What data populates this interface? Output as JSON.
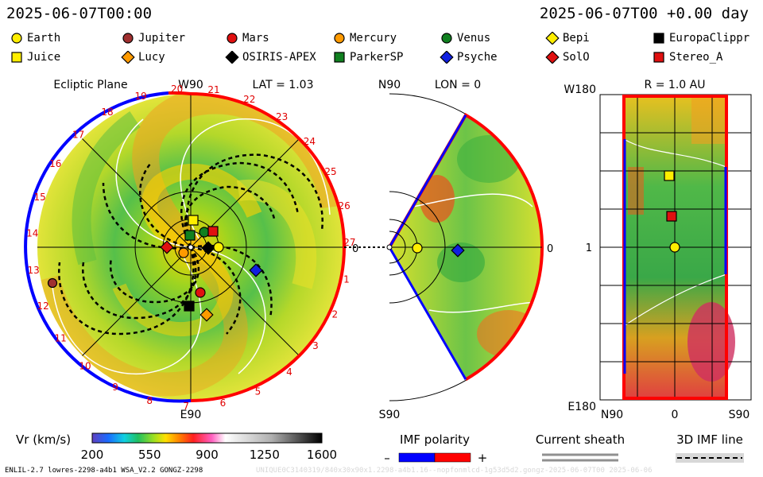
{
  "header": {
    "datetime_left": "2025-06-07T00:00",
    "datetime_right": "2025-06-07T00 +0.00 day"
  },
  "legend": {
    "objects": [
      {
        "name": "Earth",
        "shape": "circle",
        "color": "#ffee00"
      },
      {
        "name": "Jupiter",
        "shape": "circle",
        "color": "#a03030"
      },
      {
        "name": "Mars",
        "shape": "circle",
        "color": "#e01010"
      },
      {
        "name": "Mercury",
        "shape": "circle",
        "color": "#ff9a00"
      },
      {
        "name": "Venus",
        "shape": "circle",
        "color": "#108020"
      },
      {
        "name": "Bepi",
        "shape": "diamond",
        "color": "#ffee00"
      },
      {
        "name": "EuropaClippr",
        "shape": "square",
        "color": "#000000"
      },
      {
        "name": "Juice",
        "shape": "square",
        "color": "#ffee00"
      },
      {
        "name": "Lucy",
        "shape": "diamond",
        "color": "#ff9a00"
      },
      {
        "name": "OSIRIS-APEX",
        "shape": "diamond",
        "color": "#000000"
      },
      {
        "name": "ParkerSP",
        "shape": "square",
        "color": "#108020"
      },
      {
        "name": "Psyche",
        "shape": "diamond",
        "color": "#1020e0"
      },
      {
        "name": "SolO",
        "shape": "diamond",
        "color": "#e01010"
      },
      {
        "name": "Stereo_A",
        "shape": "square",
        "color": "#e01010"
      }
    ]
  },
  "panels": {
    "ecliptic": {
      "title": "Ecliptic Plane",
      "top_label": "W90",
      "lat_label": "LAT = 1.03",
      "bottom_label": "E90",
      "right_label": "0",
      "rotation_numbers": [
        "20",
        "21",
        "22",
        "23",
        "24",
        "25",
        "26",
        "27",
        "1",
        "2",
        "3",
        "4",
        "5",
        "6",
        "7",
        "8",
        "9",
        "10",
        "11",
        "12",
        "13",
        "14",
        "15",
        "16",
        "17",
        "18",
        "19"
      ]
    },
    "meridional": {
      "top_label": "N90",
      "lon_label": "LON = 0",
      "bottom_label": "S90",
      "right_label": "0"
    },
    "radial": {
      "radius_label": "R = 1.0 AU",
      "top_left_label": "W180",
      "mid_left_label": "1",
      "bottom_left_label": "E180",
      "bottom_labels": [
        "N90",
        "0",
        "S90"
      ]
    }
  },
  "colorbar": {
    "label": "Vr (km/s)",
    "ticks": [
      "200",
      "550",
      "900",
      "1250",
      "1600"
    ],
    "min": 200,
    "max": 1600
  },
  "imf": {
    "title": "IMF polarity",
    "minus": "–",
    "plus": "+",
    "negative_color": "#0000ff",
    "positive_color": "#ff0000"
  },
  "current_sheath": {
    "title": "Current sheath"
  },
  "imf_line": {
    "title": "3D IMF line"
  },
  "footer": {
    "left": "ENLIL-2.7 lowres-2298-a4b1 WSA_V2.2 GONGZ-2298",
    "right": "UNIQUE0C3140319/840x30x90x1.2298-a4b1.16--nopfonmlcd-1g53d5d2.gongz-2025-06-07T00  2025-06-06"
  },
  "chart_data": [
    {
      "type": "heatmap",
      "title": "Ecliptic Plane",
      "description_label": "LAT = 1.03",
      "quantity": "Vr (km/s)",
      "markers": [
        "Earth",
        "Jupiter",
        "Mars",
        "Mercury",
        "Venus",
        "Juice",
        "Lucy",
        "OSIRIS-APEX",
        "ParkerSP",
        "Psyche",
        "SolO",
        "Stereo_A",
        "EuropaClippr"
      ]
    },
    {
      "type": "heatmap",
      "title": "LON = 0",
      "quantity": "Vr (km/s)",
      "markers": [
        "Earth",
        "Psyche"
      ]
    },
    {
      "type": "heatmap",
      "title": "R = 1.0 AU",
      "quantity": "Vr (km/s)",
      "markers": [
        "Juice",
        "Stereo_A",
        "Earth"
      ]
    }
  ]
}
